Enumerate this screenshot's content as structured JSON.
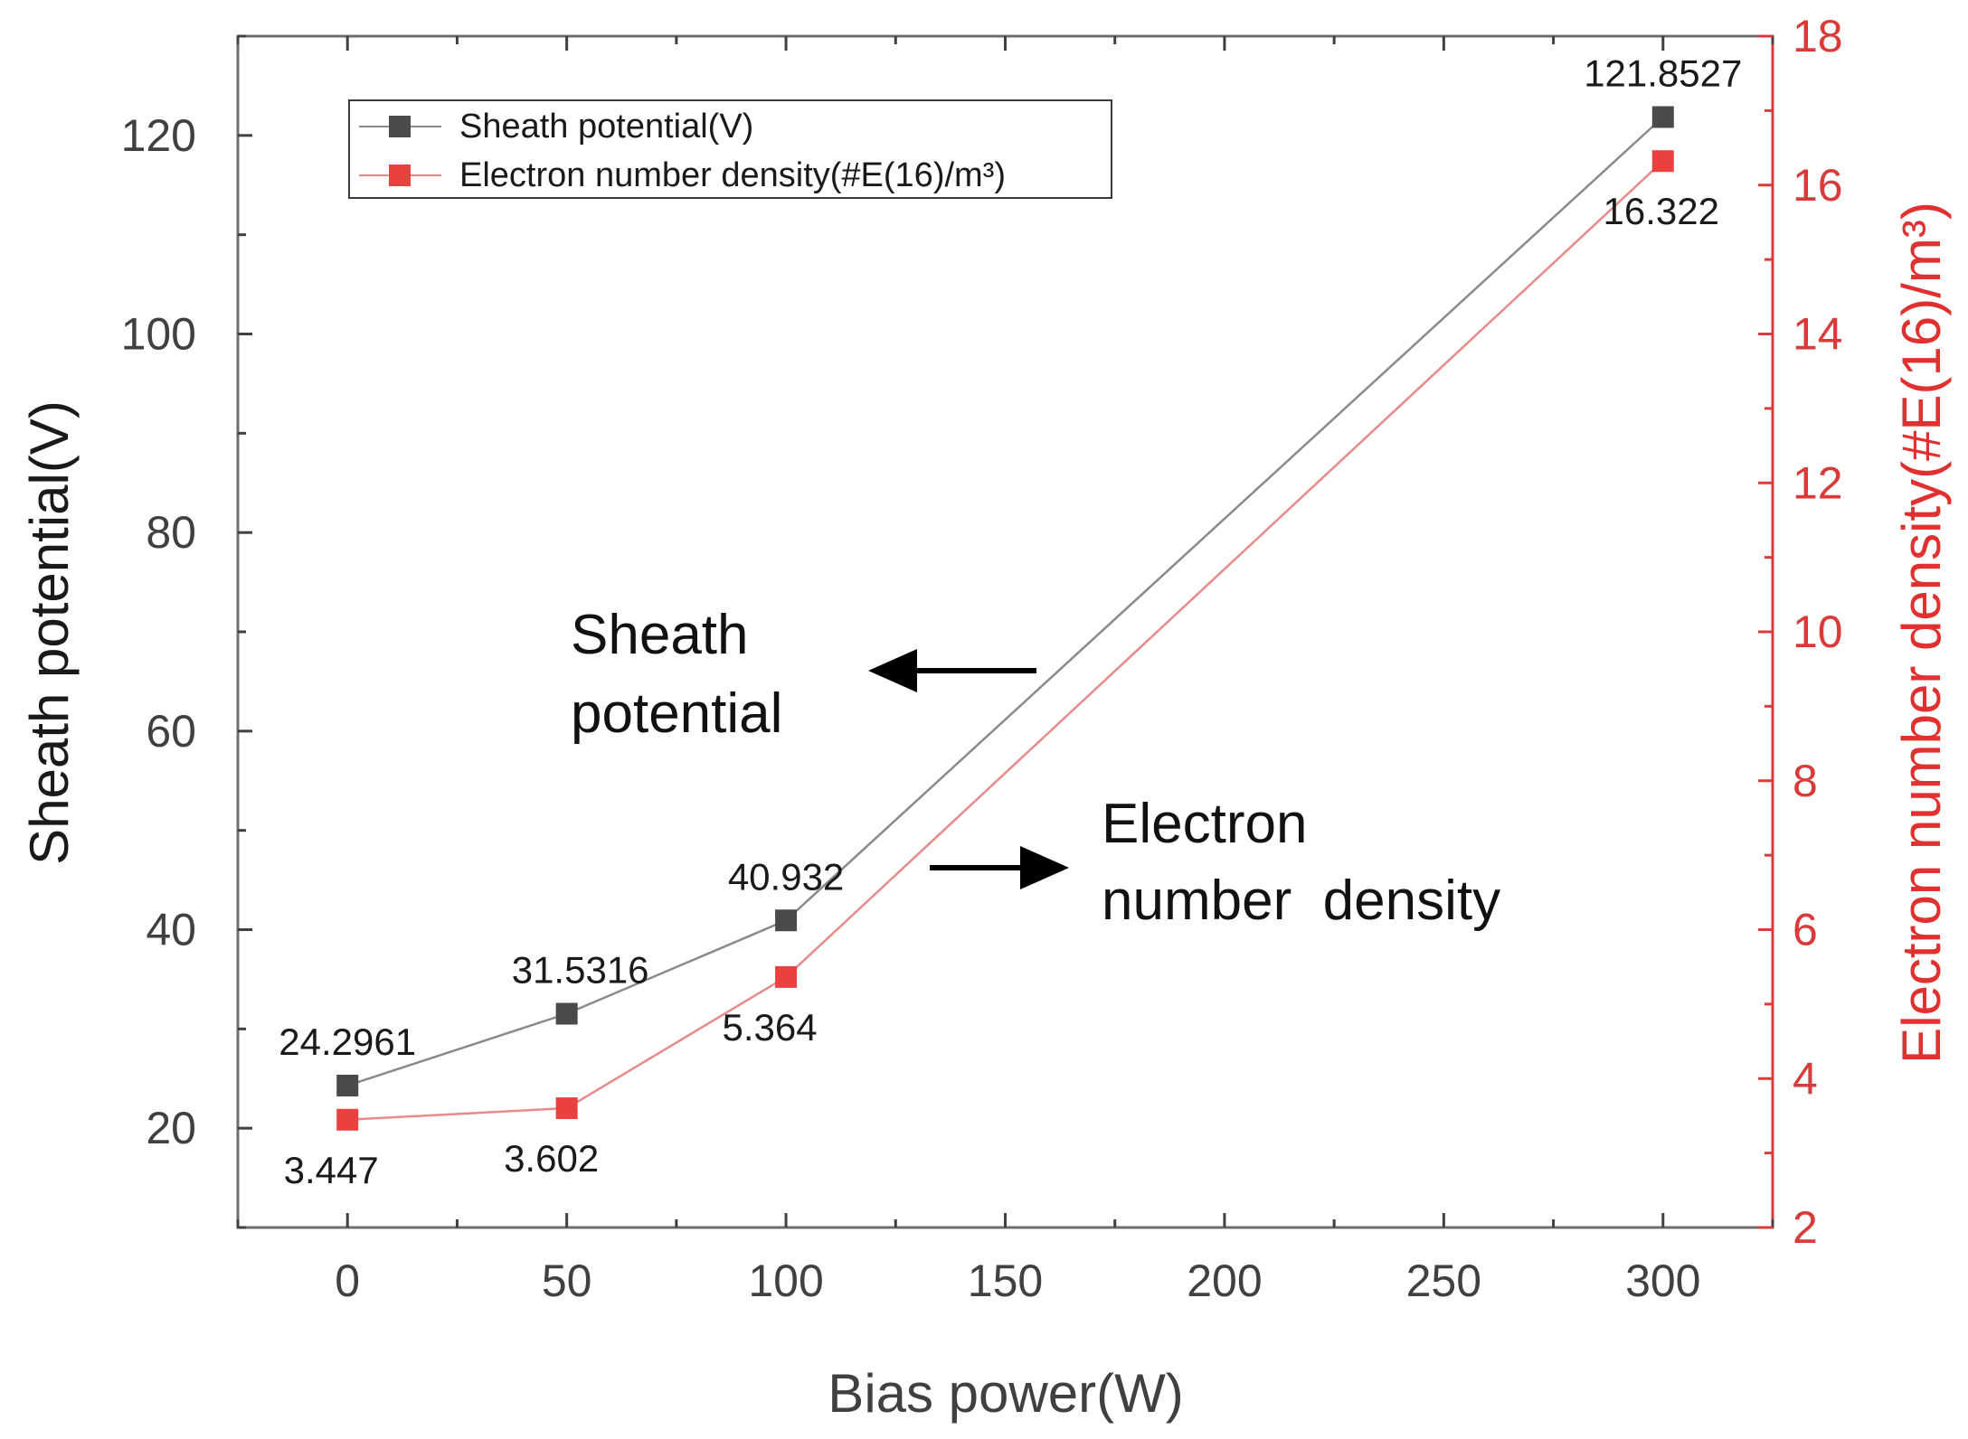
{
  "colors": {
    "series1": "#4a4a4a",
    "series2": "#e8413f",
    "left_axis": "#404040",
    "right_axis": "#d93a3a",
    "line1": "#8a8a8a",
    "line2": "#e88a8a"
  },
  "chart_data": {
    "type": "line",
    "title": "",
    "xlabel": "Bias power(W)",
    "ylabel_left": "Sheath potential(V)",
    "ylabel_right": "Electron number density(#E(16)/m³)",
    "xlim": [
      -25,
      325
    ],
    "ylim_left": [
      10,
      130
    ],
    "ylim_right": [
      2,
      18
    ],
    "x_ticks": [
      0,
      50,
      100,
      150,
      200,
      250,
      300
    ],
    "y_ticks_left": [
      20,
      40,
      60,
      80,
      100,
      120
    ],
    "y_ticks_right": [
      2,
      4,
      6,
      8,
      10,
      12,
      14,
      16,
      18
    ],
    "x": [
      0,
      50,
      100,
      300
    ],
    "series": [
      {
        "name": "Sheath potential(V)",
        "axis": "left",
        "values": [
          24.2961,
          31.5316,
          40.932,
          121.8527
        ],
        "labels": [
          "24.2961",
          "31.5316",
          "40.932",
          "121.8527"
        ]
      },
      {
        "name": "Electron number density(#E(16)/m³)",
        "axis": "right",
        "values": [
          3.447,
          3.602,
          5.364,
          16.322
        ],
        "labels": [
          "3.447",
          "3.602",
          "5.364",
          "16.322"
        ]
      }
    ],
    "legend_position": "top-left",
    "annotations": [
      {
        "lines": [
          "Sheath",
          "potential"
        ],
        "arrow": "left"
      },
      {
        "lines": [
          "Electron",
          "number  density"
        ],
        "arrow": "right"
      }
    ]
  }
}
